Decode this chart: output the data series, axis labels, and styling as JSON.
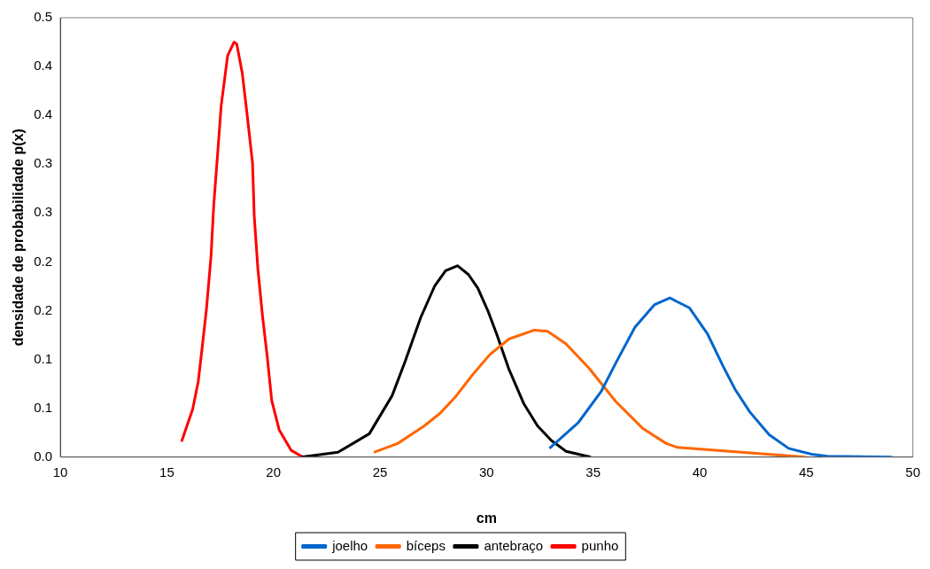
{
  "chart_data": {
    "type": "line",
    "xlabel": "cm",
    "ylabel": "densidade de probabilidade p(x)",
    "xlim": [
      10,
      50
    ],
    "xticks": [
      10,
      15,
      20,
      25,
      30,
      35,
      40,
      45,
      50
    ],
    "ylim": [
      0,
      0.45
    ],
    "yticks": [
      {
        "value": 0,
        "label": "0.0"
      },
      {
        "value": 0.05,
        "label": "0.1"
      },
      {
        "value": 0.1,
        "label": "0.1"
      },
      {
        "value": 0.15,
        "label": "0.2"
      },
      {
        "value": 0.2,
        "label": "0.2"
      },
      {
        "value": 0.25,
        "label": "0.3"
      },
      {
        "value": 0.3,
        "label": "0.3"
      },
      {
        "value": 0.35,
        "label": "0.4"
      },
      {
        "value": 0.4,
        "label": "0.4"
      },
      {
        "value": 0.45,
        "label": "0.5"
      }
    ],
    "grid": false,
    "legend": "bottom",
    "marker": "none",
    "line_style": "solid",
    "series": [
      {
        "name": "joelho",
        "color": "#0066cc",
        "x": [
          32.95,
          34.29,
          35.37,
          36.1,
          36.96,
          37.87,
          38.6,
          39.51,
          40.37,
          41.1,
          41.67,
          42.36,
          43.26,
          44.17,
          45.25,
          45.98,
          49.04
        ],
        "values": [
          0.009,
          0.035,
          0.067,
          0.098,
          0.133,
          0.156,
          0.163,
          0.153,
          0.126,
          0.093,
          0.069,
          0.046,
          0.023,
          0.009,
          0.003,
          0.001,
          0
        ]
      },
      {
        "name": "bíceps",
        "color": "#ff6600",
        "x": [
          24.71,
          25.83,
          27.08,
          27.82,
          28.51,
          29.33,
          30.15,
          31.05,
          32.22,
          32.86,
          33.73,
          34.81,
          36.06,
          37.35,
          38.43,
          38.95,
          44.99
        ],
        "values": [
          0.005,
          0.014,
          0.032,
          0.045,
          0.061,
          0.084,
          0.105,
          0.121,
          0.13,
          0.129,
          0.116,
          0.091,
          0.057,
          0.029,
          0.014,
          0.01,
          0
        ]
      },
      {
        "name": "antebraço",
        "color": "#000000",
        "x": [
          21.3,
          23.03,
          24.5,
          25.57,
          26.18,
          26.91,
          27.56,
          28.08,
          28.64,
          29.15,
          29.59,
          30.06,
          30.49,
          31.05,
          31.74,
          32.39,
          33.04,
          33.73,
          34.89
        ],
        "values": [
          0,
          0.005,
          0.024,
          0.063,
          0.098,
          0.143,
          0.175,
          0.191,
          0.196,
          0.187,
          0.173,
          0.15,
          0.125,
          0.09,
          0.055,
          0.032,
          0.017,
          0.006,
          0
        ]
      },
      {
        "name": "punho",
        "color": "#ff0000",
        "x": [
          15.69,
          16.21,
          16.47,
          16.64,
          16.86,
          17.07,
          17.2,
          17.38,
          17.55,
          17.85,
          18.15,
          18.28,
          18.54,
          18.76,
          19.02,
          19.1,
          19.27,
          19.49,
          19.71,
          19.92,
          20.27,
          20.83,
          21.39
        ],
        "values": [
          0.016,
          0.049,
          0.077,
          0.109,
          0.152,
          0.205,
          0.258,
          0.31,
          0.36,
          0.411,
          0.425,
          0.423,
          0.393,
          0.352,
          0.301,
          0.247,
          0.193,
          0.144,
          0.103,
          0.058,
          0.028,
          0.007,
          0
        ]
      }
    ]
  }
}
